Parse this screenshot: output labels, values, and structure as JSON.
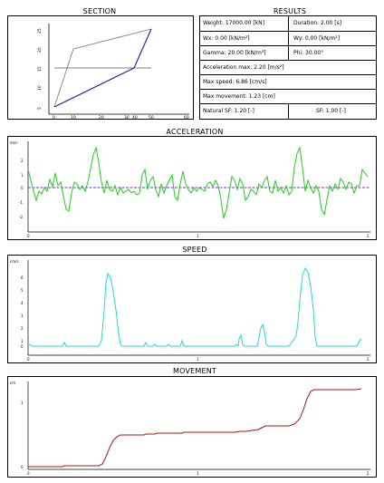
{
  "section": {
    "title": "SECTION",
    "y_ticks": [
      "5",
      "10",
      "15",
      "20",
      "25"
    ],
    "x_ticks": [
      "0",
      "10",
      "20",
      "30",
      "40",
      "50",
      "60"
    ]
  },
  "results": {
    "title": "RESULTS",
    "rows": [
      {
        "left": "Weight: 17000.00 [kN]",
        "right": "Duration: 2.00 [s]"
      },
      {
        "left": "Wx: 0.00 [kN/m²]",
        "right": "Wy: 0.00 [kN/m²]"
      },
      {
        "left": "Gamma: 20.00 [kN/m³]",
        "right": "Phi: 30.00°"
      },
      {
        "left": "Acceleration max: 2.20 [m/s²]"
      },
      {
        "left": "Max speed: 6.86 [cm/s]"
      },
      {
        "left": "Max movement: 1.23 [cm]"
      },
      {
        "left": "Natural SF: 1.20 [-]",
        "right": "SF: 1.00 [-]"
      }
    ]
  },
  "acceleration": {
    "title": "ACCELERATION",
    "unit": "m/s²",
    "y_ticks": [
      "2",
      "1",
      "0",
      "-1",
      "-2"
    ],
    "x_ticks": [
      "0",
      "1",
      "2"
    ],
    "color": "#22cc22",
    "zero_line_color": "#7a2fd0"
  },
  "speed": {
    "title": "SPEED",
    "unit": "cm/s",
    "y_ticks": [
      "6",
      "5",
      "4",
      "3",
      "2",
      "1",
      "0"
    ],
    "x_ticks": [
      "0",
      "1",
      "2"
    ],
    "color": "#22d8d8"
  },
  "movement": {
    "title": "MOVEMENT",
    "unit": "cm",
    "y_ticks": [
      "1",
      "0"
    ],
    "x_ticks": [
      "0",
      "1",
      "2"
    ],
    "color": "#b01010"
  },
  "colors": {
    "section_gray": "#808080",
    "section_blue": "#1a1aa0",
    "frame": "#000000"
  }
}
